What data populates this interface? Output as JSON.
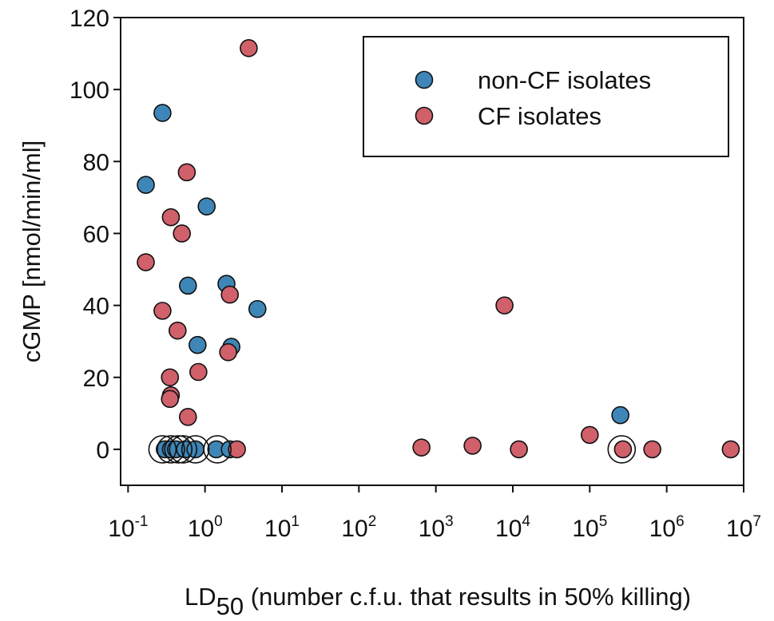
{
  "chart_data": {
    "type": "scatter",
    "title": "",
    "xlabel_main": "LD",
    "xlabel_sub": "50",
    "xlabel_rest": " (number c.f.u. that results in 50% killing)",
    "ylabel": "cGMP [nmol/min/ml]",
    "x_scale": "log",
    "xlim": [
      0.08,
      10000000
    ],
    "ylim": [
      -10,
      120
    ],
    "grid": false,
    "legend_position": "top-right",
    "y_ticks": [
      {
        "value": 0,
        "label": "0"
      },
      {
        "value": 20,
        "label": "20"
      },
      {
        "value": 40,
        "label": "40"
      },
      {
        "value": 60,
        "label": "60"
      },
      {
        "value": 80,
        "label": "80"
      },
      {
        "value": 100,
        "label": "100"
      },
      {
        "value": 120,
        "label": "120"
      }
    ],
    "x_ticks": [
      {
        "value": 0.1,
        "base": "10",
        "exp": "-1"
      },
      {
        "value": 1,
        "base": "10",
        "exp": "0"
      },
      {
        "value": 10,
        "base": "10",
        "exp": "1"
      },
      {
        "value": 100,
        "base": "10",
        "exp": "2"
      },
      {
        "value": 1000,
        "base": "10",
        "exp": "3"
      },
      {
        "value": 10000,
        "base": "10",
        "exp": "4"
      },
      {
        "value": 100000,
        "base": "10",
        "exp": "5"
      },
      {
        "value": 1000000,
        "base": "10",
        "exp": "6"
      },
      {
        "value": 10000000,
        "base": "10",
        "exp": "7"
      }
    ],
    "series": [
      {
        "name": "non-CF isolates",
        "color": "#3f86b8",
        "points": [
          {
            "x": 0.28,
            "y": 93.5
          },
          {
            "x": 0.17,
            "y": 73.5
          },
          {
            "x": 1.05,
            "y": 67.5
          },
          {
            "x": 0.6,
            "y": 45.5
          },
          {
            "x": 1.9,
            "y": 46
          },
          {
            "x": 4.8,
            "y": 39
          },
          {
            "x": 0.8,
            "y": 29
          },
          {
            "x": 2.2,
            "y": 28.5
          },
          {
            "x": 250000,
            "y": 9.5
          },
          {
            "x": 0.3,
            "y": 0
          },
          {
            "x": 0.36,
            "y": 0
          },
          {
            "x": 0.42,
            "y": 0
          },
          {
            "x": 0.55,
            "y": 0
          },
          {
            "x": 0.75,
            "y": 0
          },
          {
            "x": 1.4,
            "y": 0
          },
          {
            "x": 2.1,
            "y": 0
          }
        ]
      },
      {
        "name": "CF isolates",
        "color": "#d0606a",
        "points": [
          {
            "x": 3.7,
            "y": 111.5
          },
          {
            "x": 0.58,
            "y": 77
          },
          {
            "x": 0.36,
            "y": 64.5
          },
          {
            "x": 0.5,
            "y": 60
          },
          {
            "x": 0.17,
            "y": 52
          },
          {
            "x": 2.1,
            "y": 43
          },
          {
            "x": 0.28,
            "y": 38.5
          },
          {
            "x": 0.44,
            "y": 33
          },
          {
            "x": 2.0,
            "y": 27
          },
          {
            "x": 0.82,
            "y": 21.5
          },
          {
            "x": 0.35,
            "y": 20
          },
          {
            "x": 0.36,
            "y": 15
          },
          {
            "x": 0.35,
            "y": 14
          },
          {
            "x": 0.6,
            "y": 9
          },
          {
            "x": 7800,
            "y": 40
          },
          {
            "x": 100000,
            "y": 4
          },
          {
            "x": 3000,
            "y": 1
          },
          {
            "x": 650,
            "y": 0.5
          },
          {
            "x": 12000,
            "y": 0
          },
          {
            "x": 270000,
            "y": 0
          },
          {
            "x": 650000,
            "y": 0
          },
          {
            "x": 6800000,
            "y": 0
          },
          {
            "x": 2.6,
            "y": 0
          }
        ]
      }
    ],
    "open_circles": [
      {
        "x": 0.28,
        "y": 0
      },
      {
        "x": 0.36,
        "y": 0
      },
      {
        "x": 0.45,
        "y": 0
      },
      {
        "x": 0.52,
        "y": 0
      },
      {
        "x": 0.75,
        "y": 0
      },
      {
        "x": 1.45,
        "y": 0
      },
      {
        "x": 260000,
        "y": 0
      }
    ]
  }
}
